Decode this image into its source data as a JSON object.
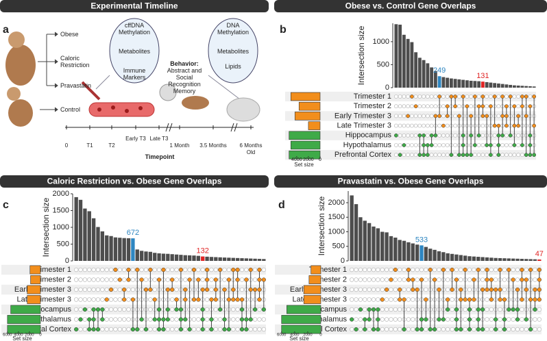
{
  "timeline": {
    "title": "Experimental Timeline",
    "label": "a",
    "groups": [
      "Obese",
      "Caloric Restriction",
      "Pravastatin",
      "Control"
    ],
    "maternal_samples": [
      "cffDNA Methylation",
      "Metabolites",
      "Immune Markers"
    ],
    "behavior_title": "Behavior:",
    "behavior": "Abstract and Social Recognition Memory",
    "offspring_samples": [
      "DNA Methylation",
      "Metabolites",
      "Lipids"
    ],
    "timepoints": [
      "0",
      "T1",
      "T2",
      "Early T3",
      "Late T3",
      "1 Month",
      "3.5 Months",
      "6 Months Old"
    ],
    "axis_label": "Timepoint"
  },
  "chart_data": [
    {
      "type": "upset",
      "label": "b",
      "title": "Obese vs. Control Gene Overlaps",
      "y_label": "Intersection size",
      "color": "#4d4d4d",
      "values": [
        1380,
        1370,
        1150,
        1060,
        990,
        770,
        650,
        600,
        530,
        440,
        360,
        249,
        230,
        215,
        200,
        190,
        180,
        170,
        160,
        150,
        145,
        140,
        131,
        120,
        110,
        100,
        90,
        80,
        70,
        60,
        50,
        45,
        40,
        35,
        30,
        25
      ],
      "highlights": [
        {
          "index": 11,
          "color": "#2e86c1"
        },
        {
          "index": 22,
          "color": "#e02424"
        }
      ],
      "ylim": [
        0,
        1400
      ],
      "yticks": [
        0,
        500,
        1000
      ],
      "sets": {
        "names": [
          "Trimester 1",
          "Trimester 2",
          "Early Trimester 3",
          "Late Trimester 3",
          "Hippocampus",
          "Hypothalamus",
          "Prefrontal Cortex"
        ],
        "values": [
          5000,
          3600,
          4300,
          2000,
          5300,
          5000,
          5300
        ],
        "colors": [
          "#f28e1c",
          "#f28e1c",
          "#f28e1c",
          "#f28e1c",
          "#3faa48",
          "#3faa48",
          "#3faa48"
        ]
      },
      "set_size_label": "Set size",
      "set_xlim": [
        0,
        5500
      ],
      "set_xticks": [
        4000,
        2000,
        0
      ],
      "intersections": [
        [
          4
        ],
        [
          6
        ],
        [
          5
        ],
        [
          2
        ],
        [
          0
        ],
        [
          1
        ],
        [
          4,
          6
        ],
        [
          4,
          5,
          6
        ],
        [
          5,
          6
        ],
        [
          4,
          5
        ],
        [
          2,
          4
        ],
        [
          0,
          2
        ],
        [
          3
        ],
        [
          1,
          2
        ],
        [
          0,
          6
        ],
        [
          0,
          1
        ],
        [
          2,
          6
        ],
        [
          0,
          4,
          5,
          6
        ],
        [
          1,
          6
        ],
        [
          2,
          4,
          6
        ],
        [
          0,
          5
        ],
        [
          1,
          4
        ],
        [
          0,
          1,
          2
        ],
        [
          2,
          5
        ],
        [
          1,
          5,
          6
        ],
        [
          0,
          3
        ],
        [
          3,
          4,
          5,
          6
        ],
        [
          0,
          2,
          4
        ],
        [
          1,
          2,
          3
        ],
        [
          0,
          4
        ],
        [
          1,
          3,
          5
        ],
        [
          2,
          3
        ],
        [
          0,
          1,
          5
        ],
        [
          0,
          2,
          6
        ],
        [
          1,
          4,
          5,
          6
        ],
        [
          0,
          3,
          6
        ]
      ]
    },
    {
      "type": "upset",
      "label": "c",
      "title": "Caloric Restriction vs. Obese Gene Overlaps",
      "y_label": "Intersection size",
      "color": "#4d4d4d",
      "values": [
        1900,
        1820,
        1560,
        1480,
        1270,
        1010,
        880,
        760,
        740,
        700,
        690,
        680,
        675,
        672,
        340,
        300,
        280,
        270,
        240,
        225,
        215,
        210,
        200,
        190,
        180,
        170,
        165,
        160,
        150,
        132,
        125,
        118,
        112,
        106,
        100,
        95,
        90,
        85,
        80,
        75,
        70,
        65,
        60,
        55
      ],
      "highlights": [
        {
          "index": 13,
          "color": "#2e86c1"
        },
        {
          "index": 29,
          "color": "#e02424"
        }
      ],
      "ylim": [
        0,
        2000
      ],
      "yticks": [
        0,
        500,
        1000,
        1500,
        2000
      ],
      "sets": {
        "names": [
          "Trimester 1",
          "Trimester 2",
          "Early Trimester 3",
          "Late Trimester 3",
          "Hippocampus",
          "Hypothalamus",
          "Prefrontal Cortex"
        ],
        "values": [
          1900,
          1800,
          2400,
          2400,
          5400,
          6000,
          6000
        ],
        "colors": [
          "#f28e1c",
          "#f28e1c",
          "#f28e1c",
          "#f28e1c",
          "#3faa48",
          "#3faa48",
          "#3faa48"
        ]
      },
      "set_size_label": "Set size",
      "set_xlim": [
        0,
        6600
      ],
      "set_xticks": [
        6000,
        4000,
        2000,
        0
      ],
      "intersections": [
        [
          6
        ],
        [
          5
        ],
        [
          4
        ],
        [
          5,
          6
        ],
        [
          4,
          5,
          6
        ],
        [
          4,
          6
        ],
        [
          4,
          5
        ],
        [
          3
        ],
        [
          2
        ],
        [
          0
        ],
        [
          1
        ],
        [
          2,
          3
        ],
        [
          0,
          1
        ],
        [
          3,
          6
        ],
        [
          0,
          6
        ],
        [
          1,
          5
        ],
        [
          2,
          6
        ],
        [
          0,
          2
        ],
        [
          3,
          5
        ],
        [
          1,
          4,
          5,
          6
        ],
        [
          0,
          5,
          6
        ],
        [
          2,
          4,
          5
        ],
        [
          1,
          2
        ],
        [
          3,
          4
        ],
        [
          0,
          4,
          5,
          6
        ],
        [
          2,
          3,
          5
        ],
        [
          1,
          6
        ],
        [
          0,
          3
        ],
        [
          1,
          3
        ],
        [
          2,
          4,
          5,
          6
        ],
        [
          0,
          1,
          2
        ],
        [
          3,
          5,
          6
        ],
        [
          1,
          2,
          3
        ],
        [
          0,
          4
        ],
        [
          2,
          5,
          6
        ],
        [
          1,
          3,
          6
        ],
        [
          0,
          2,
          3
        ],
        [
          0,
          1,
          3
        ],
        [
          3,
          4,
          5,
          6
        ],
        [
          1,
          5,
          6
        ],
        [
          0,
          2,
          5
        ],
        [
          2,
          4
        ],
        [
          0,
          1,
          2,
          3
        ],
        [
          1,
          4
        ]
      ]
    },
    {
      "type": "upset",
      "label": "d",
      "title": "Pravastatin vs. Obese Gene Overlaps",
      "y_label": "Intersection size",
      "color": "#4d4d4d",
      "values": [
        2250,
        1950,
        1500,
        1380,
        1300,
        1180,
        1120,
        1000,
        980,
        850,
        800,
        720,
        690,
        640,
        600,
        560,
        533,
        480,
        420,
        380,
        330,
        300,
        260,
        240,
        220,
        200,
        180,
        160,
        150,
        140,
        130,
        120,
        110,
        100,
        95,
        90,
        85,
        80,
        75,
        70,
        65,
        60,
        55,
        47
      ],
      "highlights": [
        {
          "index": 16,
          "color": "#2e86c1"
        },
        {
          "index": 43,
          "color": "#e02424"
        }
      ],
      "ylim": [
        0,
        2400
      ],
      "yticks": [
        0,
        500,
        1000,
        1500,
        2000
      ],
      "sets": {
        "names": [
          "Trimester 1",
          "Trimester 2",
          "Early Trimester 3",
          "Late Trimester 3",
          "Hippocampus",
          "Hypothalamus",
          "Prefrontal Cortex"
        ],
        "values": [
          1500,
          1800,
          2600,
          2600,
          5200,
          6000,
          6000
        ],
        "colors": [
          "#f28e1c",
          "#f28e1c",
          "#f28e1c",
          "#f28e1c",
          "#3faa48",
          "#3faa48",
          "#3faa48"
        ]
      },
      "set_size_label": "Set size",
      "set_xlim": [
        0,
        6600
      ],
      "set_xticks": [
        6000,
        4000,
        2000,
        0
      ],
      "intersections": [
        [
          5
        ],
        [
          6
        ],
        [
          4
        ],
        [
          5,
          6
        ],
        [
          4,
          5
        ],
        [
          4,
          6
        ],
        [
          4,
          5,
          6
        ],
        [
          3
        ],
        [
          2
        ],
        [
          1
        ],
        [
          0
        ],
        [
          2,
          3
        ],
        [
          3,
          6
        ],
        [
          0,
          1
        ],
        [
          1,
          2
        ],
        [
          2,
          6
        ],
        [
          1,
          5,
          6
        ],
        [
          3,
          5
        ],
        [
          0,
          6
        ],
        [
          1,
          6
        ],
        [
          2,
          5
        ],
        [
          0,
          5
        ],
        [
          3,
          4
        ],
        [
          0,
          2
        ],
        [
          1,
          4,
          5,
          6
        ],
        [
          2,
          3,
          6
        ],
        [
          0,
          3
        ],
        [
          3,
          4,
          5,
          6
        ],
        [
          1,
          3
        ],
        [
          0,
          4,
          5,
          6
        ],
        [
          2,
          4,
          6
        ],
        [
          0,
          1,
          2
        ],
        [
          1,
          2,
          3
        ],
        [
          2,
          5,
          6
        ],
        [
          0,
          2,
          3
        ],
        [
          3,
          5,
          6
        ],
        [
          0,
          4
        ],
        [
          1,
          4
        ],
        [
          2,
          4,
          5
        ],
        [
          0,
          1,
          3
        ],
        [
          1,
          2,
          5
        ],
        [
          0,
          3,
          6
        ],
        [
          2,
          3,
          4
        ],
        [
          0,
          1,
          2,
          3
        ]
      ]
    }
  ]
}
